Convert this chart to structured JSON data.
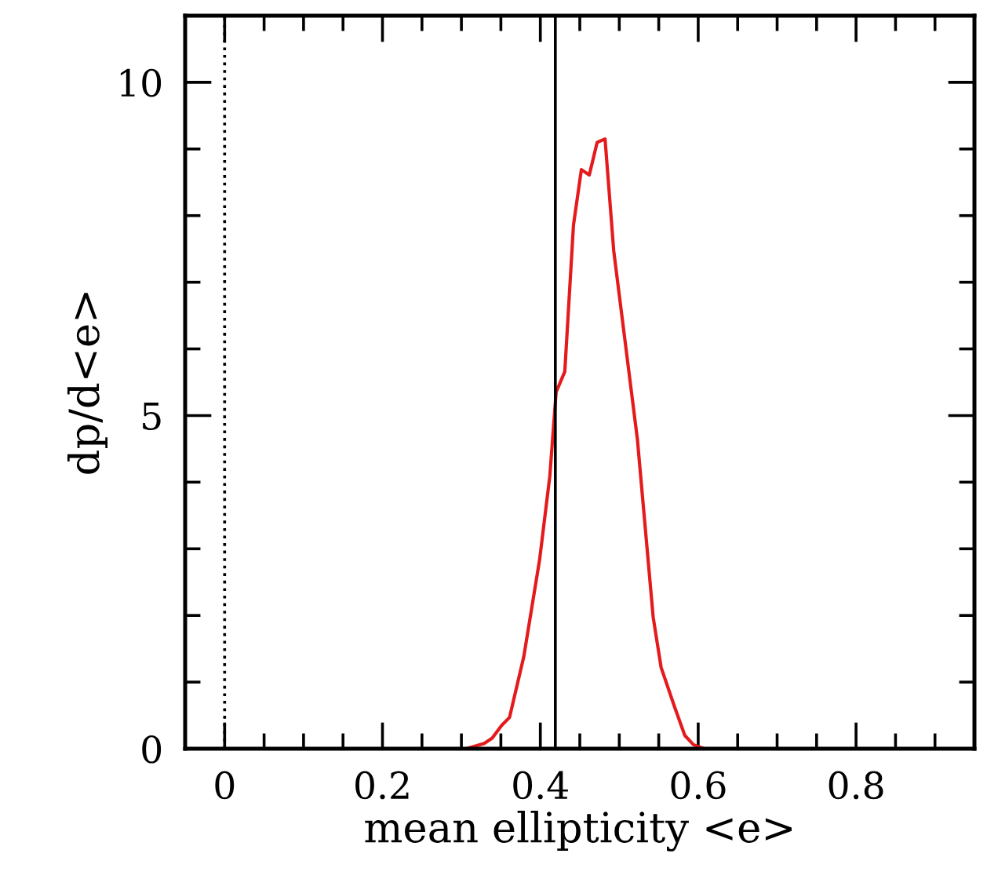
{
  "chart_data": {
    "type": "line",
    "xlabel": "mean ellipticity <e>",
    "ylabel": "dp/d<e>",
    "x": [
      0.306,
      0.329,
      0.339,
      0.351,
      0.361,
      0.379,
      0.399,
      0.412,
      0.42,
      0.431,
      0.442,
      0.452,
      0.462,
      0.472,
      0.482,
      0.493,
      0.523,
      0.543,
      0.553,
      0.57,
      0.583,
      0.594,
      0.608
    ],
    "series": [
      {
        "color": "#e41a1c",
        "values": [
          0.0,
          0.08,
          0.16,
          0.35,
          0.47,
          1.38,
          2.83,
          4.09,
          5.35,
          5.66,
          7.86,
          8.69,
          8.61,
          9.1,
          9.15,
          7.47,
          4.64,
          1.97,
          1.22,
          0.63,
          0.2,
          0.06,
          0.0
        ]
      }
    ],
    "xlim": [
      -0.05,
      0.95
    ],
    "ylim": [
      0,
      11
    ],
    "xticks": [
      0,
      0.2,
      0.4,
      0.6,
      0.8
    ],
    "yticks": [
      0,
      5,
      10
    ],
    "ref_lines": [
      {
        "axis": "x",
        "value": 0,
        "line_style": "dotted",
        "color": "#000000"
      },
      {
        "axis": "x",
        "value": 0.419,
        "line_style": "solid",
        "color": "#000000"
      }
    ],
    "grid": false,
    "line_style": "solid",
    "marker": "none"
  }
}
